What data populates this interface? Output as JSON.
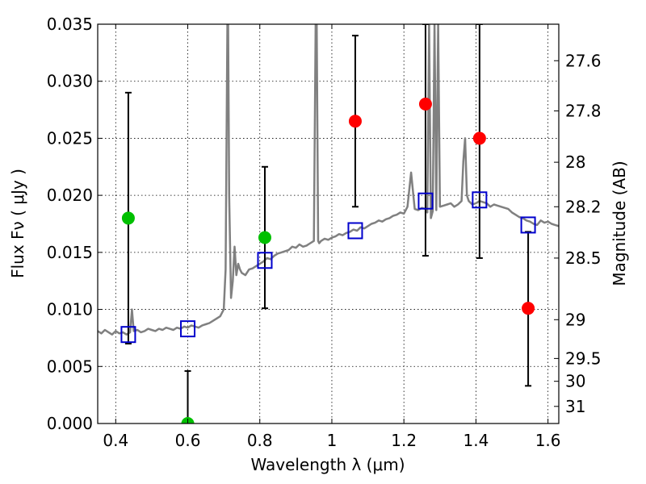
{
  "chart_data": {
    "type": "scatter",
    "xlabel": "Wavelength  λ (μm)",
    "ylabel": "Flux  Fν  ( μJy )",
    "ylabel_right": "Magnitude (AB)",
    "xlim": [
      0.35,
      1.63
    ],
    "ylim": [
      0.0,
      0.035
    ],
    "grid": true,
    "x_ticks": [
      {
        "value": 0.4,
        "label": "0.4"
      },
      {
        "value": 0.6,
        "label": "0.6"
      },
      {
        "value": 0.8,
        "label": "0.8"
      },
      {
        "value": 1.0,
        "label": "1"
      },
      {
        "value": 1.2,
        "label": "1.2"
      },
      {
        "value": 1.4,
        "label": "1.4"
      },
      {
        "value": 1.6,
        "label": "1.6"
      }
    ],
    "y_ticks": [
      {
        "value": 0.0,
        "label": "0.000"
      },
      {
        "value": 0.005,
        "label": "0.005"
      },
      {
        "value": 0.01,
        "label": "0.010"
      },
      {
        "value": 0.015,
        "label": "0.015"
      },
      {
        "value": 0.02,
        "label": "0.020"
      },
      {
        "value": 0.025,
        "label": "0.025"
      },
      {
        "value": 0.03,
        "label": "0.030"
      },
      {
        "value": 0.035,
        "label": "0.035"
      }
    ],
    "mag_ticks": [
      {
        "value": 0.0318,
        "label": "27.6"
      },
      {
        "value": 0.0274,
        "label": "27.8"
      },
      {
        "value": 0.0229,
        "label": "28"
      },
      {
        "value": 0.019,
        "label": "28.2"
      },
      {
        "value": 0.0145,
        "label": "28.5"
      },
      {
        "value": 0.0091,
        "label": "29"
      },
      {
        "value": 0.0057,
        "label": "29.5"
      },
      {
        "value": 0.0037,
        "label": "30"
      },
      {
        "value": 0.0015,
        "label": "31"
      }
    ],
    "series": [
      {
        "color": "#808080",
        "style": "line",
        "x": [
          0.35,
          0.36,
          0.37,
          0.38,
          0.39,
          0.4,
          0.41,
          0.42,
          0.43,
          0.44,
          0.445,
          0.45,
          0.46,
          0.47,
          0.48,
          0.49,
          0.5,
          0.51,
          0.52,
          0.53,
          0.54,
          0.55,
          0.56,
          0.57,
          0.58,
          0.59,
          0.6,
          0.61,
          0.62,
          0.63,
          0.64,
          0.65,
          0.66,
          0.67,
          0.68,
          0.69,
          0.7,
          0.705,
          0.71,
          0.712,
          0.715,
          0.72,
          0.725,
          0.73,
          0.735,
          0.74,
          0.745,
          0.75,
          0.76,
          0.77,
          0.78,
          0.79,
          0.8,
          0.81,
          0.82,
          0.83,
          0.84,
          0.85,
          0.86,
          0.87,
          0.88,
          0.89,
          0.9,
          0.91,
          0.92,
          0.93,
          0.94,
          0.95,
          0.955,
          0.958,
          0.962,
          0.965,
          0.97,
          0.98,
          0.99,
          1.0,
          1.01,
          1.02,
          1.03,
          1.04,
          1.05,
          1.06,
          1.07,
          1.08,
          1.09,
          1.1,
          1.11,
          1.12,
          1.13,
          1.14,
          1.15,
          1.16,
          1.17,
          1.18,
          1.19,
          1.2,
          1.21,
          1.22,
          1.23,
          1.24,
          1.25,
          1.26,
          1.265,
          1.27,
          1.275,
          1.28,
          1.285,
          1.29,
          1.295,
          1.3,
          1.31,
          1.32,
          1.33,
          1.34,
          1.35,
          1.36,
          1.365,
          1.37,
          1.375,
          1.38,
          1.39,
          1.4,
          1.41,
          1.42,
          1.43,
          1.44,
          1.45,
          1.46,
          1.47,
          1.48,
          1.49,
          1.5,
          1.51,
          1.52,
          1.53,
          1.54,
          1.55,
          1.56,
          1.57,
          1.58,
          1.59,
          1.6,
          1.61,
          1.62,
          1.63
        ],
        "y": [
          0.0081,
          0.0079,
          0.0082,
          0.008,
          0.0078,
          0.0081,
          0.0079,
          0.008,
          0.0078,
          0.008,
          0.01,
          0.0081,
          0.0082,
          0.008,
          0.0081,
          0.0083,
          0.0082,
          0.0081,
          0.0083,
          0.0082,
          0.0084,
          0.0083,
          0.0082,
          0.0084,
          0.0083,
          0.0085,
          0.0084,
          0.0086,
          0.0085,
          0.0084,
          0.0086,
          0.0087,
          0.0088,
          0.009,
          0.0092,
          0.0094,
          0.01,
          0.0135,
          0.035,
          0.035,
          0.02,
          0.011,
          0.0125,
          0.0155,
          0.013,
          0.014,
          0.0135,
          0.0132,
          0.013,
          0.0135,
          0.0136,
          0.0138,
          0.014,
          0.0142,
          0.0145,
          0.0144,
          0.0147,
          0.0149,
          0.015,
          0.0151,
          0.0152,
          0.0155,
          0.0154,
          0.0157,
          0.0155,
          0.0156,
          0.0158,
          0.016,
          0.035,
          0.035,
          0.016,
          0.0158,
          0.016,
          0.0162,
          0.0161,
          0.0163,
          0.0164,
          0.0166,
          0.0165,
          0.0167,
          0.0168,
          0.017,
          0.0169,
          0.0172,
          0.0171,
          0.0173,
          0.0175,
          0.0176,
          0.0178,
          0.0177,
          0.0179,
          0.018,
          0.0182,
          0.0183,
          0.0185,
          0.0184,
          0.019,
          0.022,
          0.0188,
          0.0187,
          0.0189,
          0.0188,
          0.0185,
          0.035,
          0.018,
          0.0186,
          0.035,
          0.0187,
          0.035,
          0.019,
          0.0191,
          0.0192,
          0.0193,
          0.019,
          0.0192,
          0.0195,
          0.023,
          0.025,
          0.02,
          0.0195,
          0.0192,
          0.0193,
          0.0195,
          0.0194,
          0.0193,
          0.019,
          0.0192,
          0.0191,
          0.019,
          0.0189,
          0.0188,
          0.0185,
          0.0183,
          0.0181,
          0.018,
          0.0178,
          0.0177,
          0.0175,
          0.0174,
          0.0178,
          0.0176,
          0.0177,
          0.0175,
          0.0174,
          0.0173
        ]
      },
      {
        "color": "#00c000",
        "style": "filled-circle",
        "x": [
          0.435,
          0.6,
          0.814
        ],
        "y": [
          0.018,
          0.0,
          0.0163
        ]
      },
      {
        "color": "#ff0000",
        "style": "filled-circle",
        "x": [
          1.065,
          1.26,
          1.41,
          1.545
        ],
        "y": [
          0.0265,
          0.028,
          0.025,
          0.0101
        ]
      },
      {
        "color": "#0000cc",
        "style": "open-square",
        "x": [
          0.435,
          0.6,
          0.814,
          1.065,
          1.26,
          1.41,
          1.545
        ],
        "y": [
          0.0078,
          0.0083,
          0.0143,
          0.0169,
          0.0195,
          0.0196,
          0.0174
        ]
      }
    ],
    "error_bars": [
      {
        "x": 0.435,
        "low": 0.007,
        "high": 0.029,
        "color": "#000000"
      },
      {
        "x": 0.6,
        "low": 0.0,
        "high": 0.0046,
        "color": "#000000"
      },
      {
        "x": 0.814,
        "low": 0.0101,
        "high": 0.0225,
        "color": "#000000"
      },
      {
        "x": 1.065,
        "low": 0.019,
        "high": 0.034,
        "color": "#000000"
      },
      {
        "x": 1.26,
        "low": 0.0147,
        "high": 0.035,
        "color": "#000000"
      },
      {
        "x": 1.41,
        "low": 0.0145,
        "high": 0.035,
        "color": "#000000"
      },
      {
        "x": 1.545,
        "low": 0.0033,
        "high": 0.0168,
        "color": "#000000"
      }
    ]
  }
}
